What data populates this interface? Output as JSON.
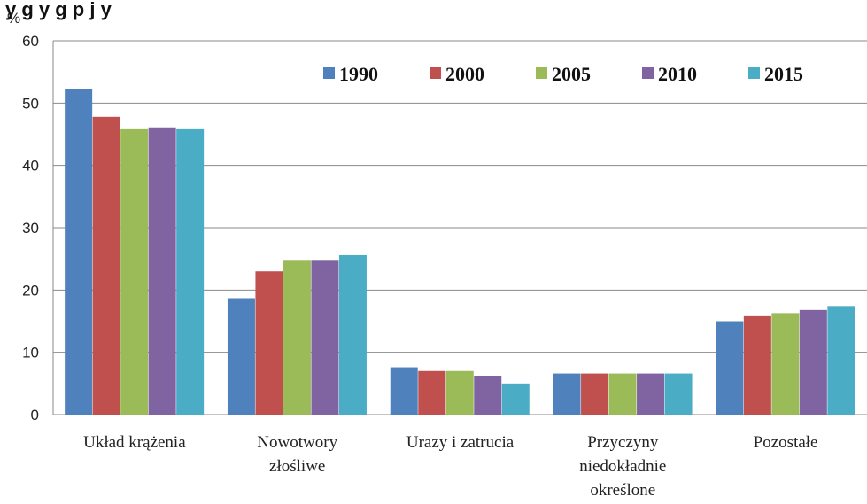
{
  "title_partial": "y                  g  y           g  p   j  y",
  "y_unit": "%",
  "colors": {
    "1990": "#4F81BD",
    "2000": "#C0504D",
    "2005": "#9BBB59",
    "2010": "#8064A2",
    "2015": "#4BACC6"
  },
  "chart_data": {
    "type": "bar",
    "title": "",
    "xlabel": "",
    "ylabel": "%",
    "ylim": [
      0,
      60
    ],
    "yticks": [
      0,
      10,
      20,
      30,
      40,
      50,
      60
    ],
    "grid": true,
    "legend_position": "top-right",
    "categories": [
      [
        "Układ krążenia"
      ],
      [
        "Nowotwory",
        "złośliwe"
      ],
      [
        "Urazy i zatrucia"
      ],
      [
        "Przyczyny",
        "niedokładnie",
        "określone"
      ],
      [
        "Pozostałe"
      ]
    ],
    "series": [
      {
        "name": "1990",
        "values": [
          52.3,
          18.7,
          7.6,
          6.6,
          15.0
        ]
      },
      {
        "name": "2000",
        "values": [
          47.8,
          23.0,
          7.0,
          6.6,
          15.8
        ]
      },
      {
        "name": "2005",
        "values": [
          45.8,
          24.7,
          7.0,
          6.6,
          16.3
        ]
      },
      {
        "name": "2010",
        "values": [
          46.1,
          24.7,
          6.2,
          6.6,
          16.8
        ]
      },
      {
        "name": "2015",
        "values": [
          45.8,
          25.6,
          5.0,
          6.6,
          17.3
        ]
      }
    ]
  }
}
